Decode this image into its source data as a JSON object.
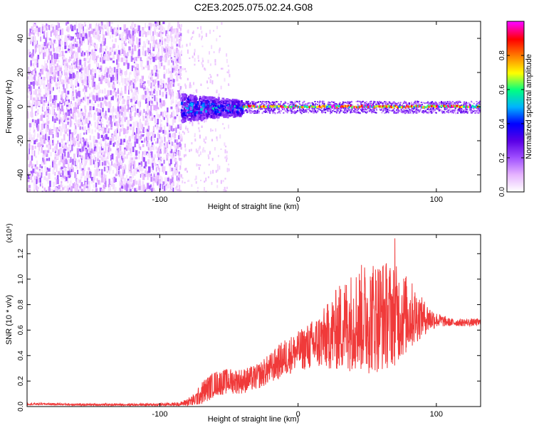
{
  "title": "C2E3.2025.075.02.24.G08",
  "colors": {
    "snr_line": "#f03a3a",
    "axis": "#000000",
    "colormap": [
      "#ffffff",
      "#e6b3ff",
      "#a050ff",
      "#5a00e6",
      "#0000ff",
      "#00b4ff",
      "#00ff80",
      "#ffff00",
      "#ff8000",
      "#ff0000",
      "#ff00ff"
    ]
  },
  "chart_data": [
    {
      "type": "heatmap",
      "title": "C2E3.2025.075.02.24.G08",
      "xlabel": "Height of straight line (km)",
      "ylabel": "Frequency (Hz)",
      "xlim": [
        -196,
        132
      ],
      "ylim": [
        -50,
        50
      ],
      "xticks": [
        -100,
        0,
        100
      ],
      "yticks": [
        -40,
        -20,
        0,
        20,
        40
      ],
      "colorbar": {
        "label": "Normalized spectral amplitude",
        "range": [
          0,
          1
        ],
        "ticks": [
          "0.0",
          "0.2",
          "0.4",
          "0.6",
          "0.8"
        ]
      },
      "regions": [
        {
          "x_range": [
            -196,
            -85
          ],
          "freq_range": [
            -50,
            50
          ],
          "amplitude": "0.05-0.2 (broadband noise)"
        },
        {
          "x_range": [
            -85,
            -40
          ],
          "freq_range": [
            -8,
            8
          ],
          "amplitude": "0.2-0.6"
        },
        {
          "x_range": [
            -40,
            132
          ],
          "freq_range": [
            -3,
            3
          ],
          "amplitude": "0.5-1.0 (tone near 0 Hz)"
        }
      ]
    },
    {
      "type": "line",
      "xlabel": "Height of straight line (km)",
      "ylabel": "SNR (10 * v/v)",
      "y_multiplier": "(x10⁴)",
      "xlim": [
        -196,
        132
      ],
      "ylim": [
        0,
        1.35
      ],
      "xticks": [
        -100,
        0,
        100
      ],
      "yticks": [
        "0.0",
        "0.2",
        "0.4",
        "0.6",
        "0.8",
        "1.0",
        "1.2"
      ],
      "series": [
        {
          "x": [
            -196,
            -180,
            -160,
            -140,
            -120,
            -100,
            -85,
            -75,
            -68,
            -60,
            -50,
            -40,
            -30,
            -20,
            -10,
            0,
            10,
            20,
            30,
            40,
            50,
            60,
            70,
            80,
            90,
            100,
            110,
            120,
            132
          ],
          "y": [
            0.02,
            0.02,
            0.015,
            0.015,
            0.015,
            0.015,
            0.02,
            0.05,
            0.12,
            0.18,
            0.2,
            0.2,
            0.23,
            0.3,
            0.38,
            0.44,
            0.48,
            0.54,
            0.62,
            0.68,
            0.7,
            0.72,
            0.72,
            0.72,
            0.7,
            0.68,
            0.66,
            0.66,
            0.66
          ],
          "noise_amplitude": [
            0.008,
            0.008,
            0.008,
            0.008,
            0.008,
            0.01,
            0.015,
            0.05,
            0.1,
            0.1,
            0.1,
            0.1,
            0.1,
            0.12,
            0.15,
            0.15,
            0.2,
            0.25,
            0.35,
            0.4,
            0.45,
            0.45,
            0.4,
            0.3,
            0.15,
            0.06,
            0.03,
            0.03,
            0.03
          ],
          "peak": {
            "x": 70,
            "y": 1.32
          }
        }
      ]
    }
  ]
}
